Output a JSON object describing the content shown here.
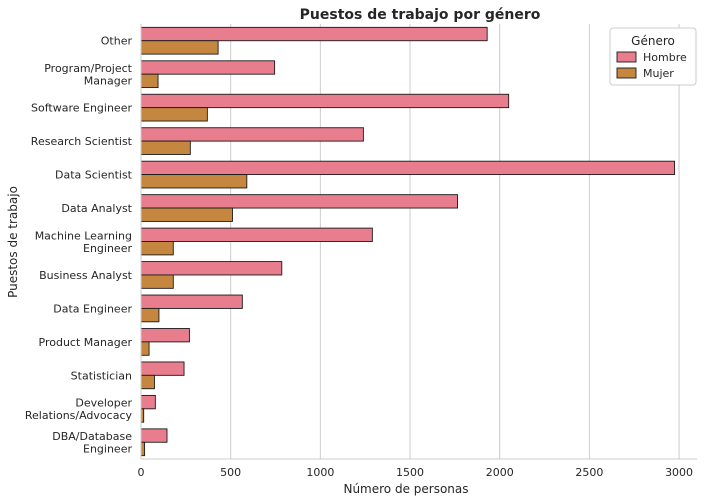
{
  "chart_data": {
    "type": "bar",
    "orientation": "horizontal",
    "title": "Puestos de trabajo por género",
    "xlabel": "Número de personas",
    "ylabel": "Puestos de trabajo",
    "xlim": [
      0,
      3100
    ],
    "xticks": [
      0,
      500,
      1000,
      1500,
      2000,
      2500,
      3000
    ],
    "grid": "vertical",
    "legend_title": "Género",
    "legend_position": "top-right",
    "categories": [
      "Other",
      "Program/Project\nManager",
      "Software Engineer",
      "Research Scientist",
      "Data Scientist",
      "Data Analyst",
      "Machine Learning\nEngineer",
      "Business Analyst",
      "Data Engineer",
      "Product Manager",
      "Statistician",
      "Developer\nRelations/Advocacy",
      "DBA/Database\nEngineer"
    ],
    "series": [
      {
        "name": "Hombre",
        "color": "#e87d8d",
        "values": [
          1930,
          745,
          2050,
          1240,
          2975,
          1765,
          1290,
          785,
          565,
          270,
          240,
          80,
          145
        ]
      },
      {
        "name": "Mujer",
        "color": "#c5873f",
        "values": [
          430,
          95,
          370,
          275,
          590,
          510,
          180,
          180,
          100,
          45,
          75,
          15,
          20
        ]
      }
    ]
  }
}
